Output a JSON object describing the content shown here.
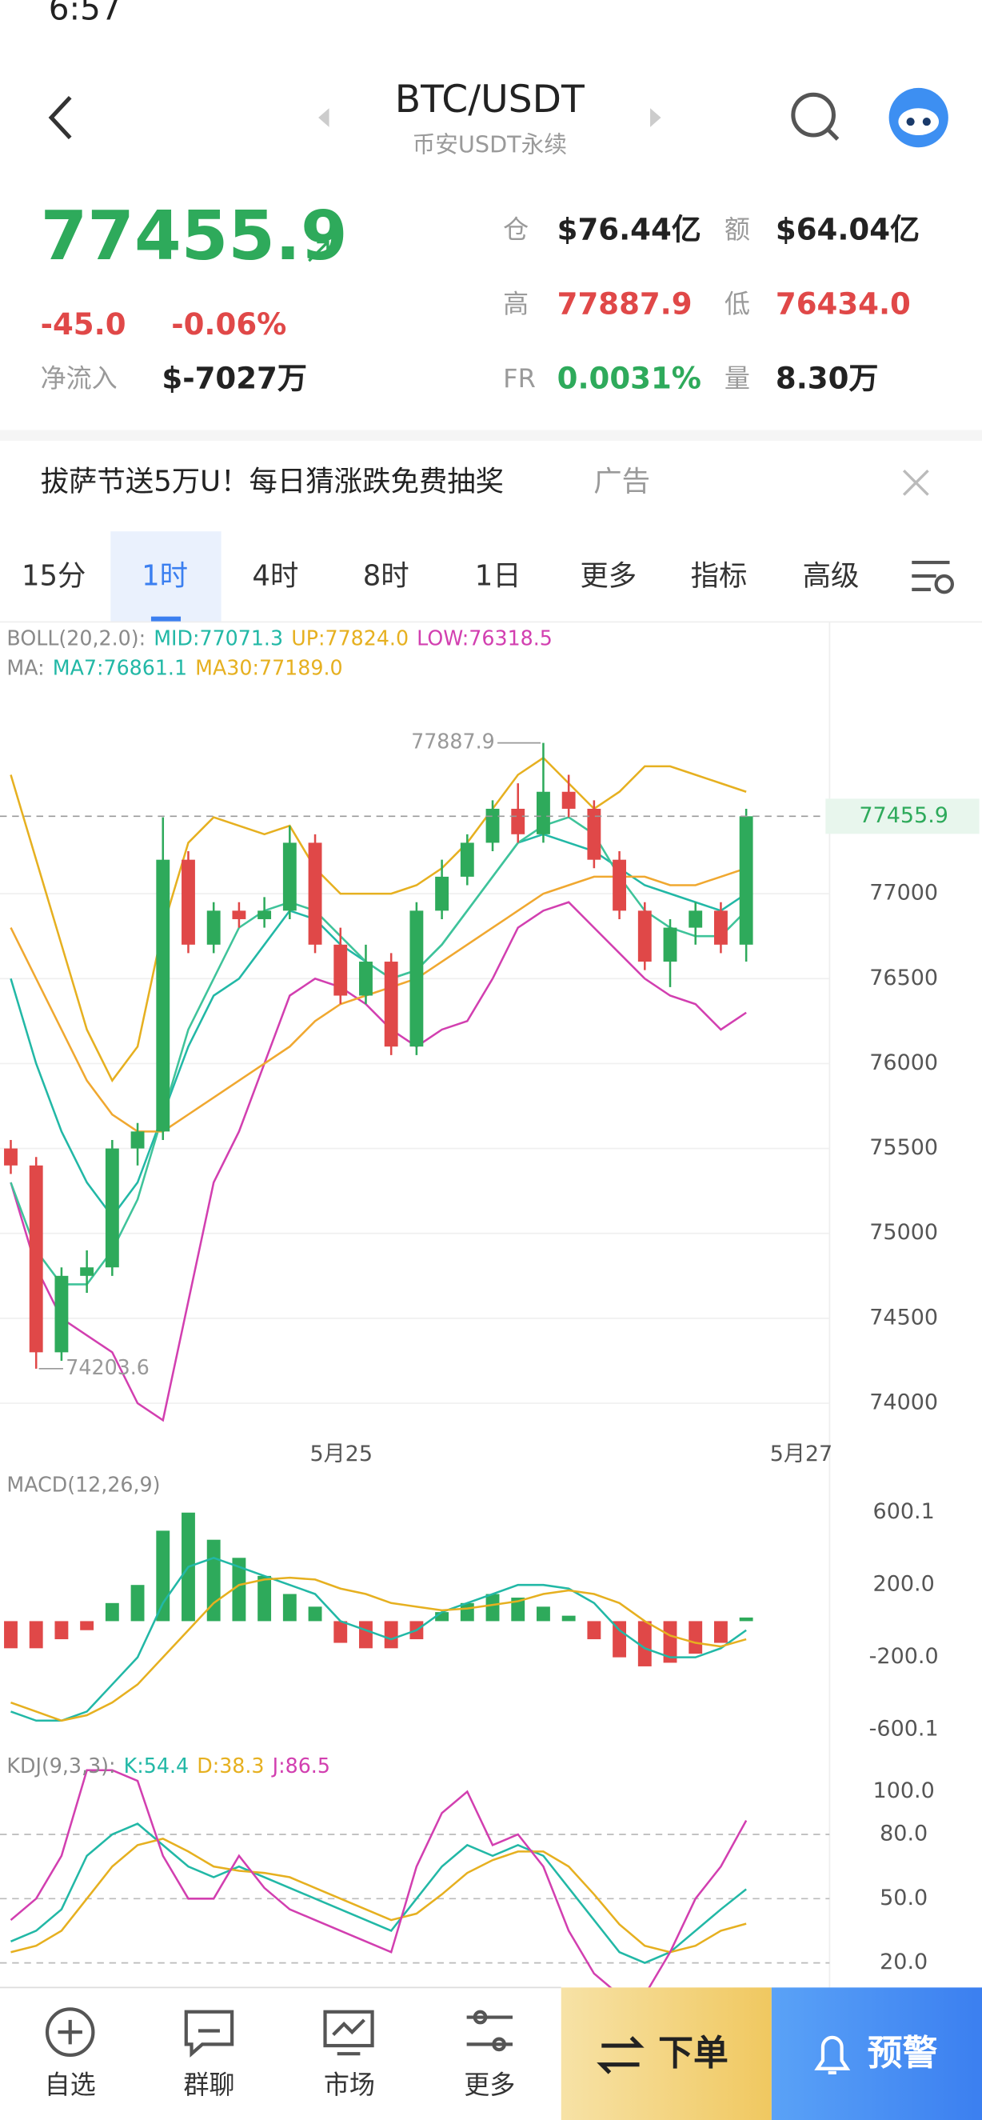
{
  "status": {
    "time": "6:57"
  },
  "header": {
    "title": "BTC/USDT",
    "subtitle": "币安USDT永续"
  },
  "ticker": {
    "price": "77455.9",
    "change": "-45.0",
    "change_pct": "-0.06%",
    "netflow_label": "净流入",
    "netflow": "$-7027万",
    "oi_label": "仓",
    "oi": "$76.44亿",
    "amount_label": "额",
    "amount": "$64.04亿",
    "high_label": "高",
    "high": "77887.9",
    "low_label": "低",
    "low": "76434.0",
    "fr_label": "FR",
    "fr": "0.0031%",
    "vol_label": "量",
    "vol": "8.30万"
  },
  "ad": {
    "text": "拔萨节送5万U！每日猜涨跌免费抽奖",
    "tag": "广告"
  },
  "tabs": [
    "15分",
    "1时",
    "4时",
    "8时",
    "1日",
    "更多",
    "指标",
    "高级"
  ],
  "chart_data": [
    {
      "type": "candlestick",
      "legend": [
        [
          "BOLL(20,2.0):",
          "MID:77071.3",
          "UP:77824.0",
          "LOW:76318.5"
        ],
        [
          "MA:",
          "MA7:76861.1",
          "MA30:77189.0"
        ]
      ],
      "legend_colors": [
        [
          "#8a8a8a",
          "#22b8a6",
          "#e6b020",
          "#d23fb0"
        ],
        [
          "#8a8a8a",
          "#22b8a6",
          "#e6b020"
        ]
      ],
      "ylim": [
        73800,
        78600
      ],
      "yticks": [
        74000,
        74500,
        75000,
        75500,
        76000,
        76500,
        77000
      ],
      "grid": true,
      "up_color": "#2eaa5b",
      "down_color": "#e04848",
      "open": [
        75500,
        75400,
        74300,
        74750,
        74800,
        75500,
        75600,
        77200,
        76700,
        76900,
        76850,
        76900,
        77300,
        76700,
        76400,
        76600,
        76100,
        76900,
        77100,
        77300,
        77500,
        77350,
        77600,
        77500,
        77200,
        76900,
        76600,
        76800,
        76900,
        76700
      ],
      "high": [
        75550,
        75450,
        74800,
        74900,
        75550,
        75650,
        77450,
        77250,
        76950,
        76950,
        76980,
        77400,
        77350,
        76800,
        76700,
        76650,
        76950,
        77200,
        77350,
        77550,
        77650,
        77887.9,
        77700,
        77550,
        77250,
        76950,
        76850,
        76950,
        76950,
        77500
      ],
      "low": [
        75350,
        74203.6,
        74250,
        74650,
        74750,
        75400,
        75550,
        76650,
        76650,
        76800,
        76800,
        76850,
        76650,
        76350,
        76350,
        76050,
        76050,
        76850,
        77050,
        77250,
        77300,
        77300,
        77450,
        77150,
        76850,
        76550,
        76450,
        76700,
        76650,
        76600
      ],
      "close": [
        75400,
        74300,
        74750,
        74800,
        75500,
        75600,
        77200,
        76700,
        76900,
        76850,
        76900,
        77300,
        76700,
        76400,
        76600,
        76100,
        76900,
        77100,
        77300,
        77500,
        77350,
        77600,
        77500,
        77200,
        76900,
        76600,
        76800,
        76900,
        76700,
        77455.9
      ],
      "series": [
        {
          "color": "#e6b020",
          "values": [
            77700,
            77200,
            76700,
            76200,
            75900,
            76100,
            76800,
            77300,
            77450,
            77400,
            77350,
            77400,
            77150,
            77000,
            77000,
            77000,
            77050,
            77150,
            77300,
            77500,
            77700,
            77800,
            77650,
            77500,
            77600,
            77750,
            77750,
            77700,
            77650,
            77600
          ]
        },
        {
          "color": "#22b8a6",
          "values": [
            76500,
            76000,
            75600,
            75300,
            75100,
            75300,
            75700,
            76100,
            76400,
            76500,
            76700,
            76900,
            76850,
            76700,
            76600,
            76500,
            76550,
            76700,
            76900,
            77100,
            77300,
            77350,
            77300,
            77250,
            77150,
            77050,
            77000,
            76950,
            76900,
            77000
          ]
        },
        {
          "color": "#d23fb0",
          "values": [
            75300,
            74800,
            74500,
            74400,
            74300,
            74000,
            73900,
            74600,
            75300,
            75600,
            76000,
            76400,
            76500,
            76450,
            76350,
            76200,
            76100,
            76200,
            76250,
            76500,
            76800,
            76900,
            76950,
            76800,
            76650,
            76500,
            76400,
            76350,
            76200,
            76300
          ]
        },
        {
          "color": "#3fc39a",
          "values": [
            75300,
            74900,
            74700,
            74700,
            74900,
            75200,
            75700,
            76200,
            76500,
            76800,
            76900,
            76950,
            76900,
            76750,
            76600,
            76500,
            76550,
            76700,
            76900,
            77100,
            77300,
            77400,
            77450,
            77350,
            77100,
            76900,
            76800,
            76750,
            76750,
            76900
          ]
        },
        {
          "color": "#f0a830",
          "values": [
            76800,
            76500,
            76200,
            75900,
            75700,
            75600,
            75600,
            75700,
            75800,
            75900,
            76000,
            76100,
            76250,
            76350,
            76400,
            76450,
            76500,
            76600,
            76700,
            76800,
            76900,
            77000,
            77050,
            77100,
            77100,
            77100,
            77050,
            77050,
            77100,
            77150
          ]
        }
      ],
      "last": 77455.9,
      "max_mark": 77887.9,
      "min_mark": 74203.6,
      "x_labels": [
        "5月25",
        "5月27"
      ]
    },
    {
      "type": "macd",
      "legend": [
        [
          "MACD(12,26,9)"
        ]
      ],
      "legend_colors": [
        [
          "#8a8a8a"
        ]
      ],
      "ylim": [
        -680,
        815
      ],
      "yticks": [
        600.1,
        {
          "value": 200,
          "label": "200.0"
        },
        {
          "value": -200,
          "label": "-200.0"
        },
        -600.1
      ],
      "up_color": "#2eaa5b",
      "down_color": "#e04848",
      "histogram": [
        -150,
        -150,
        -100,
        -50,
        100,
        200,
        500,
        600,
        450,
        350,
        250,
        150,
        80,
        -120,
        -150,
        -150,
        -100,
        50,
        100,
        150,
        130,
        80,
        30,
        -100,
        -200,
        -250,
        -230,
        -180,
        -120,
        20
      ],
      "series": [
        {
          "color": "#22b8a6",
          "values": [
            -500,
            -550,
            -550,
            -500,
            -350,
            -200,
            100,
            300,
            350,
            300,
            250,
            200,
            150,
            0,
            -50,
            -100,
            -50,
            50,
            100,
            150,
            200,
            200,
            180,
            100,
            -50,
            -150,
            -200,
            -200,
            -150,
            -50
          ]
        },
        {
          "color": "#e6b020",
          "values": [
            -450,
            -500,
            -550,
            -520,
            -450,
            -350,
            -200,
            -50,
            100,
            200,
            230,
            240,
            230,
            180,
            150,
            100,
            80,
            60,
            70,
            90,
            110,
            150,
            170,
            150,
            100,
            0,
            -80,
            -120,
            -140,
            -100
          ]
        }
      ]
    },
    {
      "type": "kdj",
      "legend": [
        [
          "KDJ(9,3,3):",
          "K:54.4",
          "D:38.3",
          "J:86.5"
        ]
      ],
      "legend_colors": [
        [
          "#8a8a8a",
          "#22b8a6",
          "#e6b020",
          "#d23fb0"
        ]
      ],
      "ylim": [
        8.5,
        119
      ],
      "yticks": [
        {
          "value": 100,
          "label": "100.0"
        },
        {
          "value": 80,
          "label": "80.0"
        },
        {
          "value": 50,
          "label": "50.0"
        },
        {
          "value": 20,
          "label": "20.0"
        }
      ],
      "dashed": [
        80,
        50,
        20
      ],
      "series": [
        {
          "color": "#22b8a6",
          "values": [
            30,
            35,
            45,
            70,
            80,
            85,
            75,
            65,
            60,
            65,
            60,
            55,
            50,
            45,
            40,
            35,
            50,
            65,
            75,
            70,
            75,
            70,
            55,
            40,
            25,
            20,
            25,
            35,
            45,
            54.4
          ]
        },
        {
          "color": "#e6b020",
          "values": [
            25,
            28,
            35,
            50,
            65,
            75,
            78,
            72,
            65,
            63,
            62,
            60,
            55,
            50,
            45,
            40,
            43,
            52,
            62,
            68,
            72,
            72,
            65,
            52,
            38,
            28,
            25,
            28,
            35,
            38.3
          ]
        },
        {
          "color": "#d23fb0",
          "values": [
            40,
            50,
            70,
            110,
            110,
            105,
            70,
            50,
            50,
            70,
            55,
            45,
            40,
            35,
            30,
            25,
            65,
            90,
            100,
            75,
            80,
            65,
            35,
            15,
            5,
            5,
            25,
            50,
            65,
            86.5
          ]
        }
      ]
    }
  ],
  "nav": [
    "自选",
    "群聊",
    "市场",
    "更多"
  ],
  "buttons": [
    "下单",
    "预警"
  ]
}
